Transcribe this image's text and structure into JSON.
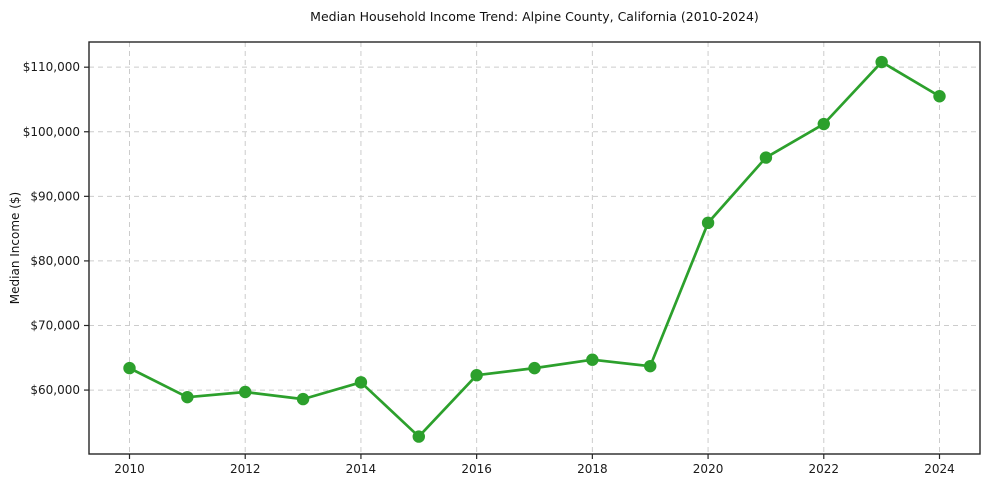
{
  "chart_data": {
    "type": "line",
    "title": "Median Household Income Trend: Alpine County, California (2010-2024)",
    "xlabel": "",
    "ylabel": "Median Income ($)",
    "x": [
      2010,
      2011,
      2012,
      2013,
      2014,
      2015,
      2016,
      2017,
      2018,
      2019,
      2020,
      2021,
      2022,
      2023,
      2024
    ],
    "values": [
      63400,
      58900,
      59700,
      58600,
      61200,
      52800,
      62300,
      63400,
      64700,
      63700,
      85900,
      96000,
      101200,
      110800,
      105500
    ],
    "series_name": "Median Household Income",
    "xlim": [
      2009.3,
      2024.7
    ],
    "ylim": [
      50100,
      113900
    ],
    "x_ticks": [
      2010,
      2012,
      2014,
      2016,
      2018,
      2020,
      2022,
      2024
    ],
    "y_ticks": [
      60000,
      70000,
      80000,
      90000,
      100000,
      110000
    ],
    "y_tick_labels": [
      "$60,000",
      "$70,000",
      "$80,000",
      "$90,000",
      "$100,000",
      "$110,000"
    ],
    "grid": true,
    "grid_style": "dashed",
    "legend": "none",
    "line_color": "#2ca02c",
    "marker": "circle"
  }
}
